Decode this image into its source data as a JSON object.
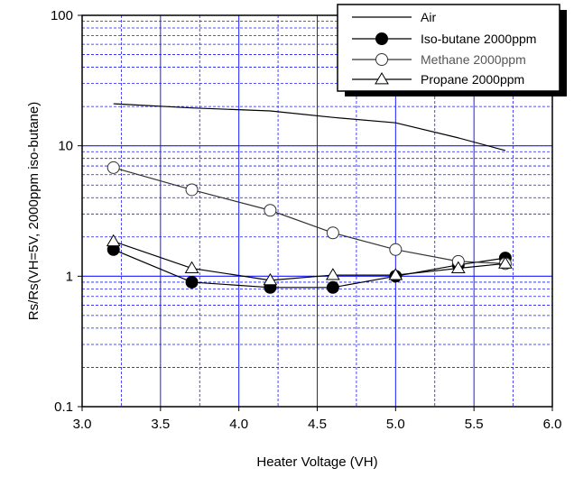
{
  "chart_data": {
    "type": "line",
    "title": "",
    "xlabel": "Heater Voltage (VH)",
    "ylabel": "Rs/Rs(VH=5V, 2000ppm iso-butane)",
    "xlim": [
      3.0,
      6.0
    ],
    "ylim": [
      0.1,
      100
    ],
    "y_scale": "log",
    "x_ticks": [
      "3.0",
      "3.5",
      "4.0",
      "4.5",
      "5.0",
      "5.5",
      "6.0"
    ],
    "y_ticks": [
      "0.1",
      "1",
      "10",
      "100"
    ],
    "grid": true,
    "legend_position": "top-right",
    "series": [
      {
        "name": "Air",
        "marker": "none",
        "color": "#000000",
        "x": [
          3.2,
          3.7,
          4.2,
          4.6,
          5.0,
          5.4,
          5.7
        ],
        "y": [
          21,
          19.5,
          18.5,
          16.5,
          15,
          11.5,
          9.2
        ]
      },
      {
        "name": "Iso-butane 2000ppm",
        "marker": "filled-circle",
        "color": "#000000",
        "x": [
          3.2,
          3.7,
          4.2,
          4.6,
          5.0,
          5.4,
          5.7
        ],
        "y": [
          1.6,
          0.9,
          0.82,
          0.82,
          1.0,
          1.22,
          1.38
        ]
      },
      {
        "name": "Methane 2000ppm",
        "marker": "open-circle",
        "color": "#333333",
        "label_color": "#555555",
        "x": [
          3.2,
          3.7,
          4.2,
          4.6,
          5.0,
          5.4,
          5.7
        ],
        "y": [
          6.8,
          4.6,
          3.2,
          2.15,
          1.6,
          1.3,
          1.25
        ]
      },
      {
        "name": "Propane 2000ppm",
        "marker": "open-triangle",
        "color": "#000000",
        "x": [
          3.2,
          3.7,
          4.2,
          4.6,
          5.0,
          5.4,
          5.7
        ],
        "y": [
          1.85,
          1.15,
          0.93,
          1.02,
          1.02,
          1.15,
          1.25
        ]
      }
    ]
  },
  "colors": {
    "major_grid": "#1a1aff",
    "minor_grid": "#1a1aff",
    "axis": "#000000"
  }
}
